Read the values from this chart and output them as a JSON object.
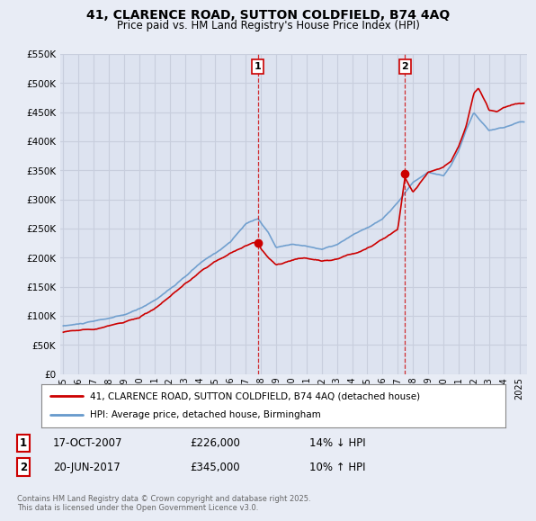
{
  "title": "41, CLARENCE ROAD, SUTTON COLDFIELD, B74 4AQ",
  "subtitle": "Price paid vs. HM Land Registry's House Price Index (HPI)",
  "bg_color": "#e8ecf5",
  "plot_bg_color": "#dde3f0",
  "red_color": "#cc0000",
  "blue_color": "#6699cc",
  "grid_color": "#c8cedd",
  "ylim": [
    0,
    550000
  ],
  "yticks": [
    0,
    50000,
    100000,
    150000,
    200000,
    250000,
    300000,
    350000,
    400000,
    450000,
    500000,
    550000
  ],
  "ytick_labels": [
    "£0",
    "£50K",
    "£100K",
    "£150K",
    "£200K",
    "£250K",
    "£300K",
    "£350K",
    "£400K",
    "£450K",
    "£500K",
    "£550K"
  ],
  "sale1_x": 2007.79,
  "sale1_y": 226000,
  "sale1_label": "1",
  "sale1_date": "17-OCT-2007",
  "sale1_price": "£226,000",
  "sale1_hpi": "14% ↓ HPI",
  "sale2_x": 2017.47,
  "sale2_y": 345000,
  "sale2_label": "2",
  "sale2_date": "20-JUN-2017",
  "sale2_price": "£345,000",
  "sale2_hpi": "10% ↑ HPI",
  "legend_label_red": "41, CLARENCE ROAD, SUTTON COLDFIELD, B74 4AQ (detached house)",
  "legend_label_blue": "HPI: Average price, detached house, Birmingham",
  "footer": "Contains HM Land Registry data © Crown copyright and database right 2025.\nThis data is licensed under the Open Government Licence v3.0.",
  "xmin": 1994.8,
  "xmax": 2025.5
}
